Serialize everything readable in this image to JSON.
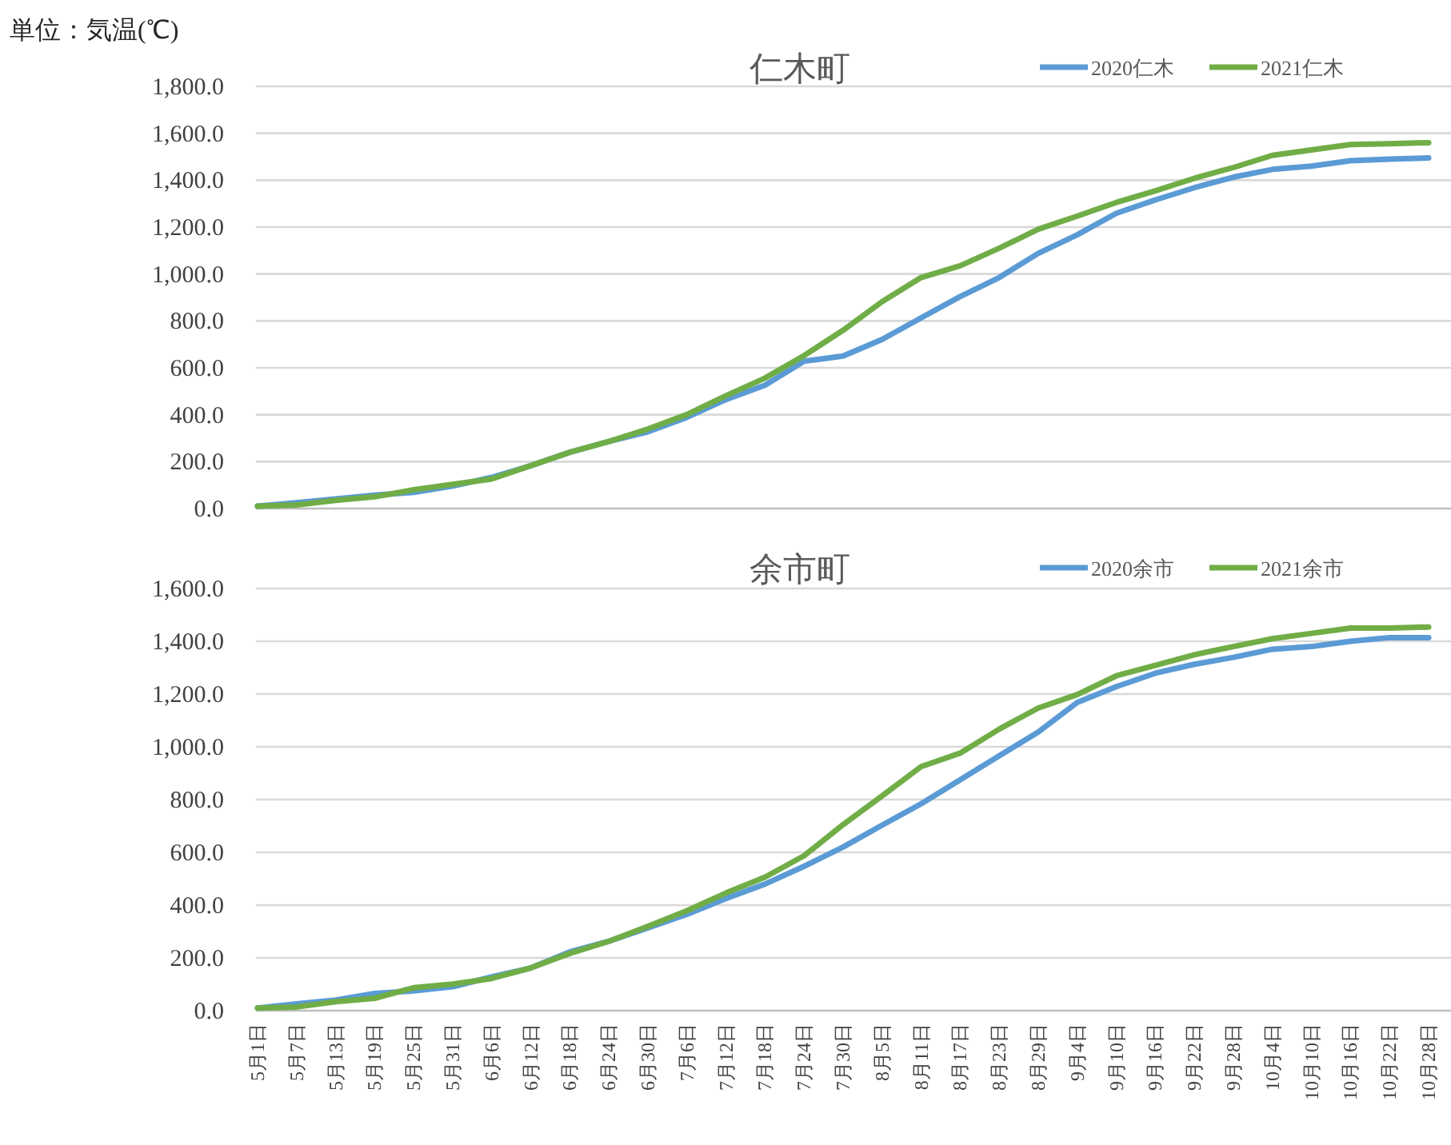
{
  "chart_data": [
    {
      "type": "line",
      "title": "仁木町",
      "annotations": [
        "単位：気温(℃)"
      ],
      "categories": [
        null,
        null,
        null,
        null,
        null,
        null,
        null,
        null,
        null,
        null,
        null,
        null,
        null,
        null,
        null,
        null,
        null,
        null,
        null,
        null,
        null,
        null,
        null,
        null,
        null,
        null,
        null,
        null,
        null,
        null,
        null
      ],
      "series": [
        {
          "name": "2020仁木",
          "color": "#5b9bd5",
          "values": [
            10,
            25,
            41,
            57,
            69,
            96,
            133,
            183,
            240,
            286,
            327,
            389,
            465,
            526,
            628,
            650,
            721,
            813,
            904,
            985,
            1088,
            1167,
            1259,
            1316,
            1368,
            1413,
            1446,
            1460,
            1483,
            1490,
            1495
          ]
        },
        {
          "name": "2021仁木",
          "color": "#70ad47",
          "values": [
            10,
            15,
            35,
            50,
            80,
            103,
            126,
            183,
            240,
            286,
            339,
            401,
            481,
            556,
            652,
            760,
            882,
            985,
            1035,
            1110,
            1191,
            1247,
            1305,
            1355,
            1408,
            1454,
            1506,
            1529,
            1552,
            1555,
            1560
          ]
        }
      ],
      "ylim": [
        0,
        1800
      ],
      "yticks": [
        {
          "value": 0,
          "label": "0.0"
        },
        {
          "value": 200,
          "label": "200.0"
        },
        {
          "value": 400,
          "label": "400.0"
        },
        {
          "value": 600,
          "label": "600.0"
        },
        {
          "value": 800,
          "label": "800.0"
        },
        {
          "value": 1000,
          "label": "1,000.0"
        },
        {
          "value": 1200,
          "label": "1,200.0"
        },
        {
          "value": 1400,
          "label": "1,400.0"
        },
        {
          "value": 1600,
          "label": "1,600.0"
        },
        {
          "value": 1800,
          "label": "1,800.0"
        }
      ],
      "grid": "y",
      "legend": "top right",
      "tick_labels": "y"
    },
    {
      "type": "line",
      "title": "余市町",
      "categories": [
        "5月1日",
        "5月7日",
        "5月13日",
        "5月19日",
        "5月25日",
        "5月31日",
        "6月6日",
        "6月12日",
        "6月18日",
        "6月24日",
        "6月30日",
        "7月6日",
        "7月12日",
        "7月18日",
        "7月24日",
        "7月30日",
        "8月5日",
        "8月11日",
        "8月17日",
        "8月23日",
        "8月29日",
        "9月4日",
        "9月10日",
        "9月16日",
        "9月22日",
        "9月28日",
        "10月4日",
        "10月10日",
        "10月16日",
        "10月22日",
        "10月28日"
      ],
      "series": [
        {
          "name": "2020余市",
          "color": "#5b9bd5",
          "values": [
            10,
            26,
            40,
            65,
            75,
            91,
            128,
            162,
            223,
            263,
            314,
            365,
            425,
            480,
            547,
            620,
            703,
            784,
            875,
            966,
            1056,
            1168,
            1228,
            1279,
            1313,
            1339,
            1370,
            1380,
            1400,
            1414,
            1414
          ]
        },
        {
          "name": "2021余市",
          "color": "#70ad47",
          "values": [
            10,
            14,
            34,
            47,
            87,
            101,
            122,
            162,
            217,
            263,
            320,
            379,
            446,
            506,
            587,
            705,
            814,
            925,
            976,
            1067,
            1147,
            1198,
            1269,
            1309,
            1349,
            1380,
            1410,
            1430,
            1450,
            1450,
            1454
          ]
        }
      ],
      "ylim": [
        0,
        1600
      ],
      "yticks": [
        {
          "value": 0,
          "label": "0.0"
        },
        {
          "value": 200,
          "label": "200.0"
        },
        {
          "value": 400,
          "label": "400.0"
        },
        {
          "value": 600,
          "label": "600.0"
        },
        {
          "value": 800,
          "label": "800.0"
        },
        {
          "value": 1000,
          "label": "1,000.0"
        },
        {
          "value": 1200,
          "label": "1,200.0"
        },
        {
          "value": 1400,
          "label": "1,400.0"
        },
        {
          "value": 1600,
          "label": "1,600.0"
        }
      ],
      "grid": "y",
      "legend": "top right"
    }
  ]
}
